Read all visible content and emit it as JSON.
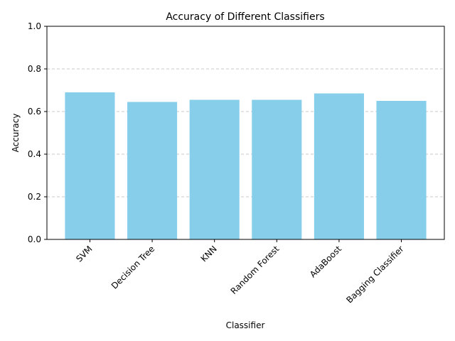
{
  "chart_data": {
    "type": "bar",
    "title": "Accuracy of Different Classifiers",
    "xlabel": "Classifier",
    "ylabel": "Accuracy",
    "categories": [
      "SVM",
      "Decision Tree",
      "KNN",
      "Random Forest",
      "AdaBoost",
      "Bagging Classifier"
    ],
    "values": [
      0.69,
      0.645,
      0.655,
      0.655,
      0.685,
      0.65
    ],
    "ylim": [
      0,
      1.0
    ],
    "yticks": [
      "0.0",
      "0.2",
      "0.4",
      "0.6",
      "0.8",
      "1.0"
    ],
    "grid": "y-axis dashed",
    "bar_color": "#87ceeb",
    "grid_color": "#c8c8c8"
  }
}
